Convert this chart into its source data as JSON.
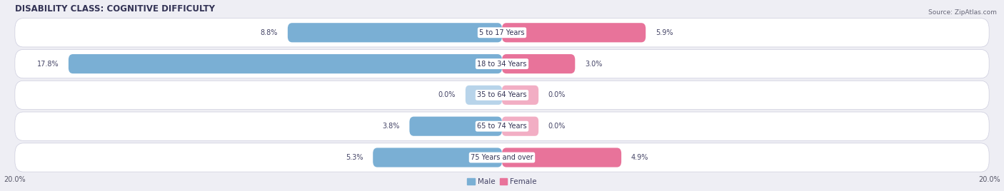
{
  "title": "DISABILITY CLASS: COGNITIVE DIFFICULTY",
  "source": "Source: ZipAtlas.com",
  "categories": [
    "5 to 17 Years",
    "18 to 34 Years",
    "35 to 64 Years",
    "65 to 74 Years",
    "75 Years and over"
  ],
  "male_values": [
    8.8,
    17.8,
    0.0,
    3.8,
    5.3
  ],
  "female_values": [
    5.9,
    3.0,
    0.0,
    0.0,
    4.9
  ],
  "male_color": "#7aafd4",
  "female_color": "#e8739a",
  "male_color_zero": "#b8d4ea",
  "female_color_zero": "#f2aec4",
  "axis_max": 20.0,
  "bg_color": "#eeeef4",
  "row_bg_color": "#e4e4ee",
  "title_fontsize": 8.5,
  "label_fontsize": 7.0,
  "value_fontsize": 7.0,
  "tick_fontsize": 7.0,
  "legend_fontsize": 7.5,
  "source_fontsize": 6.5
}
